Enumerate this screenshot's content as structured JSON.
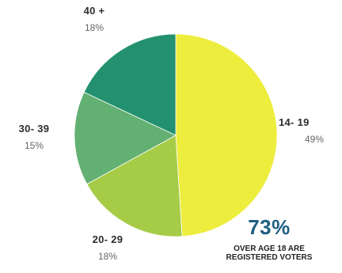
{
  "chart_data": {
    "type": "pie",
    "title": "",
    "slices": [
      {
        "label": "14- 19",
        "percent_label": "49%",
        "value": 49,
        "color": "#eded3e"
      },
      {
        "label": "20- 29",
        "percent_label": "18%",
        "value": 18,
        "color": "#a6cc47"
      },
      {
        "label": "30- 39",
        "percent_label": "15%",
        "value": 15,
        "color": "#62b072"
      },
      {
        "label": "40 +",
        "percent_label": "18%",
        "value": 18,
        "color": "#23916f"
      }
    ]
  },
  "callout": {
    "value": "73%",
    "line1": "OVER AGE 18 ARE",
    "line2": "REGISTERED VOTERS"
  }
}
